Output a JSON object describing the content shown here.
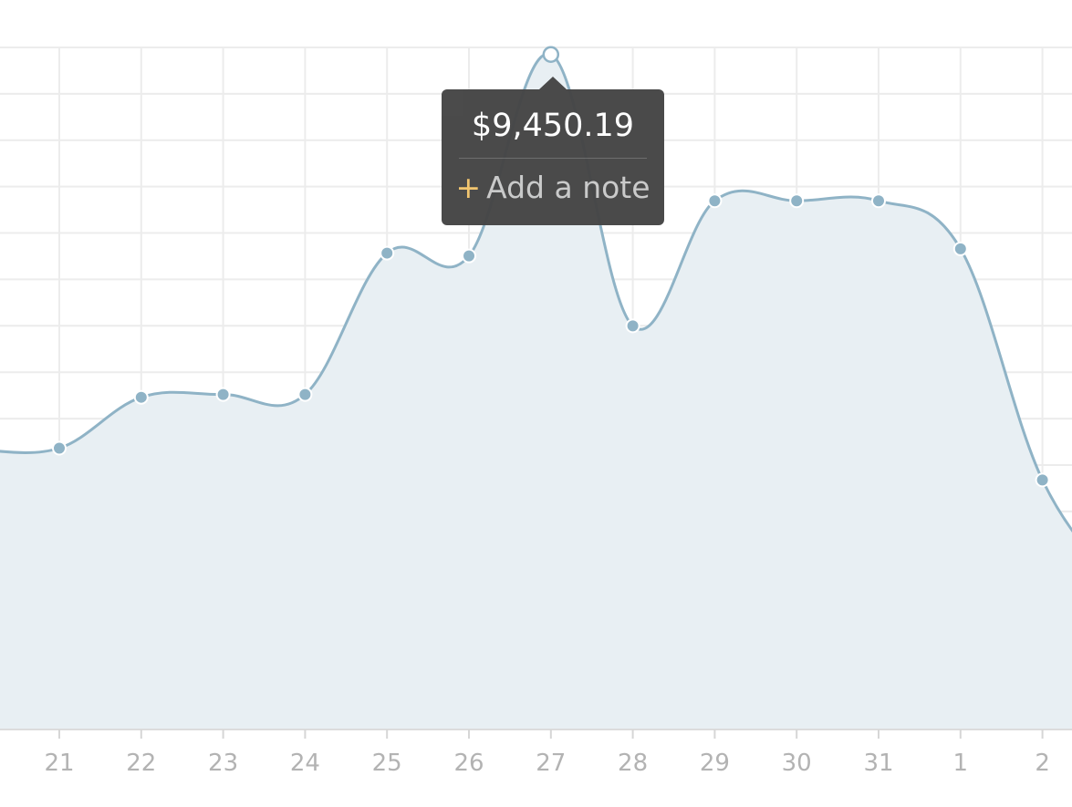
{
  "chart_data": {
    "type": "area",
    "x": [
      "21",
      "22",
      "23",
      "24",
      "25",
      "26",
      "27",
      "28",
      "29",
      "30",
      "31",
      "1",
      "2"
    ],
    "series": [
      {
        "values": [
          3880,
          4600,
          4640,
          4640,
          6640,
          6600,
          9450.19,
          5610,
          7380,
          7380,
          7380,
          6700,
          3430
        ]
      }
    ],
    "ylim": [
      -100,
      9550
    ],
    "grid": true,
    "colors": {
      "line": "#8fb3c6",
      "fill": "#e8eff3",
      "grid": "#ececec",
      "tick": "#b3b3b3"
    },
    "highlight_index": 6,
    "tooltip": {
      "value": "$9,450.19",
      "plus": "+",
      "note_label": "Add a note"
    }
  }
}
